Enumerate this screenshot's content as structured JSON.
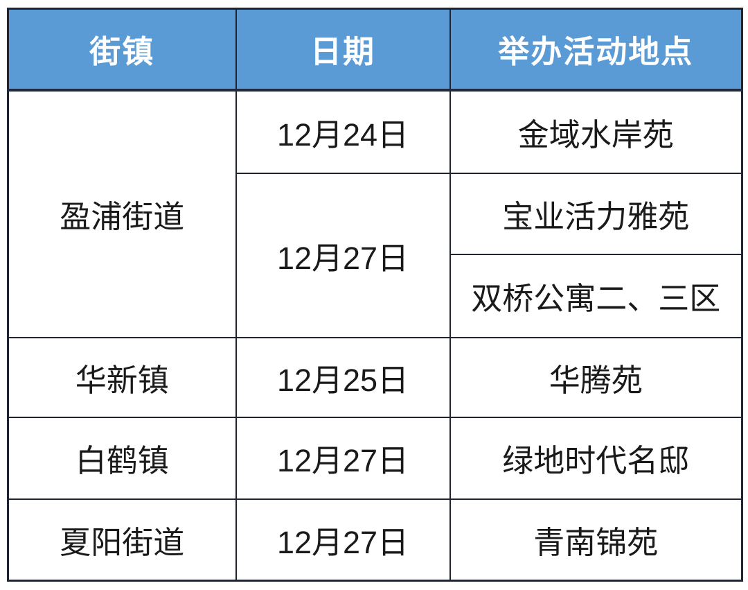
{
  "table": {
    "headers": {
      "town": "街镇",
      "date": "日期",
      "location": "举办活动地点"
    },
    "rows": [
      {
        "town": "盈浦街道",
        "date": "12月24日",
        "location": "金域水岸苑"
      },
      {
        "date": "12月27日",
        "location": "宝业活力雅苑"
      },
      {
        "location": "双桥公寓二、三区"
      },
      {
        "town": "华新镇",
        "date": "12月25日",
        "location": "华腾苑"
      },
      {
        "town": "白鹤镇",
        "date": "12月27日",
        "location": "绿地时代名邸"
      },
      {
        "town": "夏阳街道",
        "date": "12月27日",
        "location": "青南锦苑"
      }
    ],
    "colors": {
      "header_bg": "#5b9bd5",
      "header_text": "#ffffff",
      "body_text": "#1a1a1a",
      "border": "#1f2430"
    }
  }
}
